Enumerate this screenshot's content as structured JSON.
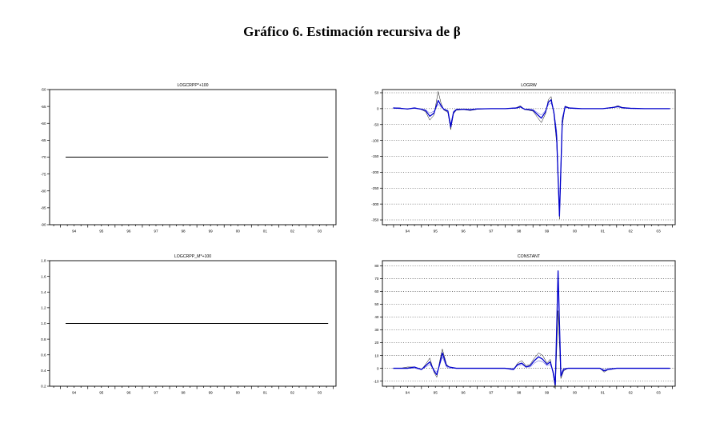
{
  "page_title": "Gráfico 6. Estimación recursiva de β",
  "chart_data": [
    {
      "id": "logcrpp",
      "type": "line",
      "title": "LOGCRPP*+100",
      "grid": false,
      "xlim": [
        1993.6,
        2004.1
      ],
      "ylim": [
        -90,
        -50
      ],
      "ydecimals": 0,
      "yticks": [
        -50,
        -55,
        -60,
        -65,
        -70,
        -75,
        -80,
        -85,
        -90
      ],
      "xticks": [
        {
          "x": 1994.5,
          "label": "94"
        },
        {
          "x": 1995.5,
          "label": "95"
        },
        {
          "x": 1996.5,
          "label": "96"
        },
        {
          "x": 1997.5,
          "label": "97"
        },
        {
          "x": 1998.5,
          "label": "98"
        },
        {
          "x": 1999.5,
          "label": "99"
        },
        {
          "x": 2000.5,
          "label": "00"
        },
        {
          "x": 2001.5,
          "label": "01"
        },
        {
          "x": 2002.5,
          "label": "02"
        },
        {
          "x": 2003.5,
          "label": "03"
        }
      ],
      "series": [
        {
          "name": "recursive-coefficient",
          "color": "#000000",
          "width": 1.1,
          "x": [
            1994.2,
            2003.8
          ],
          "y": [
            -70,
            -70
          ]
        }
      ]
    },
    {
      "id": "logrw",
      "type": "line",
      "title": "LOGRW",
      "grid": true,
      "xlim": [
        1993.6,
        2004.1
      ],
      "ylim": [
        -365,
        60
      ],
      "ydecimals": 0,
      "yticks": [
        50,
        0,
        -50,
        -100,
        -150,
        -200,
        -250,
        -300,
        -350
      ],
      "xticks": [
        {
          "x": 1994.5,
          "label": "94"
        },
        {
          "x": 1995.5,
          "label": "95"
        },
        {
          "x": 1996.5,
          "label": "96"
        },
        {
          "x": 1997.5,
          "label": "97"
        },
        {
          "x": 1998.5,
          "label": "98"
        },
        {
          "x": 1999.5,
          "label": "99"
        },
        {
          "x": 2000.5,
          "label": "00"
        },
        {
          "x": 2001.5,
          "label": "01"
        },
        {
          "x": 2002.5,
          "label": "02"
        },
        {
          "x": 2003.5,
          "label": "03"
        }
      ],
      "series": [
        {
          "name": "band-upper",
          "color": "#111111",
          "width": 0.5,
          "x": [
            1994.0,
            1994.25,
            1994.5,
            1994.75,
            1995.0,
            1995.15,
            1995.3,
            1995.45,
            1995.6,
            1995.7,
            1995.8,
            1995.95,
            1996.05,
            1996.15,
            1996.25,
            1996.5,
            1996.75,
            1997.0,
            1997.5,
            1998.0,
            1998.4,
            1998.55,
            1998.7,
            1998.85,
            1999.0,
            1999.15,
            1999.3,
            1999.45,
            1999.55,
            1999.65,
            1999.75,
            1999.85,
            1999.95,
            2000.05,
            2000.15,
            2000.3,
            2000.5,
            2000.75,
            2001.0,
            2001.5,
            2001.9,
            2002.05,
            2002.2,
            2002.5,
            2003.0,
            2003.9
          ],
          "y": [
            3,
            2,
            -2,
            3,
            -3,
            -10,
            -36,
            -20,
            54,
            18,
            -4,
            -12,
            -66,
            -16,
            -5,
            -3,
            -6,
            -2,
            0,
            0,
            3,
            9,
            -3,
            -5,
            -8,
            -26,
            -44,
            -16,
            28,
            38,
            -18,
            -110,
            -348,
            -55,
            8,
            3,
            1,
            0,
            0,
            0,
            5,
            9,
            4,
            1,
            0,
            0
          ]
        },
        {
          "name": "band-lower",
          "color": "#4444dd",
          "width": 0.5,
          "x": [
            1994.0,
            1994.25,
            1994.5,
            1994.75,
            1995.0,
            1995.15,
            1995.3,
            1995.45,
            1995.6,
            1995.7,
            1995.8,
            1995.95,
            1996.05,
            1996.15,
            1996.25,
            1996.5,
            1996.75,
            1997.0,
            1997.5,
            1998.0,
            1998.4,
            1998.55,
            1998.7,
            1998.85,
            1999.0,
            1999.15,
            1999.3,
            1999.45,
            1999.55,
            1999.65,
            1999.75,
            1999.85,
            1999.95,
            2000.05,
            2000.15,
            2000.3,
            2000.5,
            2000.75,
            2001.0,
            2001.5,
            2001.9,
            2002.05,
            2002.2,
            2002.5,
            2003.0,
            2003.9
          ],
          "y": [
            1,
            0,
            -1,
            1,
            -1,
            -4,
            -14,
            -8,
            14,
            5,
            -1,
            -5,
            -48,
            -8,
            -2,
            -1,
            -2,
            0,
            0,
            0,
            1,
            4,
            -1,
            -2,
            -3,
            -12,
            -20,
            -6,
            12,
            18,
            -8,
            -70,
            -328,
            -28,
            4,
            1,
            0,
            0,
            0,
            0,
            3,
            5,
            2,
            0,
            0,
            0
          ]
        },
        {
          "name": "recursive-coefficient",
          "color": "#0000cc",
          "width": 1.3,
          "x": [
            1994.0,
            1994.25,
            1994.5,
            1994.75,
            1995.0,
            1995.15,
            1995.3,
            1995.45,
            1995.6,
            1995.7,
            1995.8,
            1995.95,
            1996.05,
            1996.15,
            1996.25,
            1996.5,
            1996.75,
            1997.0,
            1997.5,
            1998.0,
            1998.4,
            1998.55,
            1998.7,
            1998.85,
            1999.0,
            1999.15,
            1999.3,
            1999.45,
            1999.55,
            1999.65,
            1999.75,
            1999.85,
            1999.95,
            2000.05,
            2000.15,
            2000.3,
            2000.5,
            2000.75,
            2001.0,
            2001.5,
            2001.9,
            2002.05,
            2002.2,
            2002.5,
            2003.0,
            2003.9
          ],
          "y": [
            2,
            1,
            -1,
            2,
            -2,
            -6,
            -24,
            -14,
            26,
            10,
            -2,
            -8,
            -58,
            -12,
            -3,
            -2,
            -4,
            -1,
            0,
            0,
            2,
            6,
            -2,
            -3,
            -5,
            -18,
            -30,
            -10,
            20,
            28,
            -12,
            -90,
            -338,
            -40,
            6,
            2,
            1,
            0,
            0,
            0,
            4,
            7,
            3,
            1,
            0,
            0
          ]
        }
      ]
    },
    {
      "id": "logcrpp-m",
      "type": "line",
      "title": "LOGCRPP_M*+100",
      "grid": false,
      "xlim": [
        1993.6,
        2004.1
      ],
      "ylim": [
        0.2,
        1.8
      ],
      "ydecimals": 1,
      "yticks": [
        1.8,
        1.6,
        1.4,
        1.2,
        1.0,
        0.8,
        0.6,
        0.4,
        0.2
      ],
      "xticks": [
        {
          "x": 1994.5,
          "label": "94"
        },
        {
          "x": 1995.5,
          "label": "95"
        },
        {
          "x": 1996.5,
          "label": "96"
        },
        {
          "x": 1997.5,
          "label": "97"
        },
        {
          "x": 1998.5,
          "label": "98"
        },
        {
          "x": 1999.5,
          "label": "99"
        },
        {
          "x": 2000.5,
          "label": "00"
        },
        {
          "x": 2001.5,
          "label": "01"
        },
        {
          "x": 2002.5,
          "label": "02"
        },
        {
          "x": 2003.5,
          "label": "03"
        }
      ],
      "series": [
        {
          "name": "recursive-coefficient",
          "color": "#000000",
          "width": 1.1,
          "x": [
            1994.2,
            2003.8
          ],
          "y": [
            1.0,
            1.0
          ]
        }
      ]
    },
    {
      "id": "constant",
      "type": "line",
      "title": "CONSTANT",
      "grid": true,
      "xlim": [
        1993.6,
        2004.1
      ],
      "ylim": [
        -14,
        84
      ],
      "ydecimals": 0,
      "yticks": [
        80,
        70,
        60,
        50,
        40,
        30,
        20,
        10,
        0,
        -10
      ],
      "xticks": [
        {
          "x": 1994.5,
          "label": "94"
        },
        {
          "x": 1995.5,
          "label": "95"
        },
        {
          "x": 1996.5,
          "label": "96"
        },
        {
          "x": 1997.5,
          "label": "97"
        },
        {
          "x": 1998.5,
          "label": "98"
        },
        {
          "x": 1999.5,
          "label": "99"
        },
        {
          "x": 2000.5,
          "label": "00"
        },
        {
          "x": 2001.5,
          "label": "01"
        },
        {
          "x": 2002.5,
          "label": "02"
        },
        {
          "x": 2003.5,
          "label": "03"
        }
      ],
      "series": [
        {
          "name": "band-upper",
          "color": "#111111",
          "width": 0.5,
          "x": [
            1994.0,
            1994.25,
            1994.5,
            1994.75,
            1995.0,
            1995.15,
            1995.3,
            1995.45,
            1995.55,
            1995.65,
            1995.75,
            1995.9,
            1996.0,
            1996.25,
            1996.5,
            1997.0,
            1997.5,
            1998.0,
            1998.3,
            1998.45,
            1998.6,
            1998.75,
            1998.9,
            1999.05,
            1999.2,
            1999.35,
            1999.5,
            1999.62,
            1999.72,
            1999.8,
            1999.9,
            2000.0,
            2000.1,
            2000.25,
            2000.5,
            2001.0,
            2001.4,
            2001.55,
            2001.7,
            2002.0,
            2002.5,
            2003.0,
            2003.9
          ],
          "y": [
            0,
            0,
            1,
            1,
            -1,
            3,
            8,
            -3,
            -7,
            5,
            15,
            3,
            1,
            0,
            0,
            0,
            0,
            0,
            -1,
            4,
            6,
            2,
            3,
            8,
            12,
            10,
            4,
            7,
            -4,
            -16,
            45,
            -8,
            -2,
            0,
            0,
            0,
            0,
            -3,
            -1,
            0,
            0,
            0,
            0
          ]
        },
        {
          "name": "band-lower",
          "color": "#4444dd",
          "width": 0.5,
          "x": [
            1994.0,
            1994.25,
            1994.5,
            1994.75,
            1995.0,
            1995.15,
            1995.3,
            1995.45,
            1995.55,
            1995.65,
            1995.75,
            1995.9,
            1996.0,
            1996.25,
            1996.5,
            1997.0,
            1997.5,
            1998.0,
            1998.3,
            1998.45,
            1998.6,
            1998.75,
            1998.9,
            1999.05,
            1999.2,
            1999.35,
            1999.5,
            1999.62,
            1999.72,
            1999.8,
            1999.9,
            2000.0,
            2000.1,
            2000.25,
            2000.5,
            2001.0,
            2001.4,
            2001.55,
            2001.7,
            2002.0,
            2002.5,
            2003.0,
            2003.9
          ],
          "y": [
            0,
            0,
            0,
            0,
            -1,
            1,
            3,
            -1,
            -3,
            2,
            9,
            1,
            0,
            0,
            0,
            0,
            0,
            0,
            0,
            2,
            3,
            1,
            1,
            4,
            6,
            5,
            2,
            3,
            -2,
            -9,
            70,
            -4,
            0,
            0,
            0,
            0,
            0,
            -1,
            0,
            0,
            0,
            0,
            0
          ]
        },
        {
          "name": "recursive-coefficient",
          "color": "#0000cc",
          "width": 1.3,
          "x": [
            1994.0,
            1994.25,
            1994.5,
            1994.75,
            1995.0,
            1995.15,
            1995.3,
            1995.45,
            1995.55,
            1995.65,
            1995.75,
            1995.9,
            1996.0,
            1996.25,
            1996.5,
            1997.0,
            1997.5,
            1998.0,
            1998.3,
            1998.45,
            1998.6,
            1998.75,
            1998.9,
            1999.05,
            1999.2,
            1999.35,
            1999.5,
            1999.62,
            1999.72,
            1999.8,
            1999.9,
            2000.0,
            2000.1,
            2000.25,
            2000.5,
            2001.0,
            2001.4,
            2001.55,
            2001.7,
            2002.0,
            2002.5,
            2003.0,
            2003.9
          ],
          "y": [
            0,
            0,
            0,
            1,
            -1,
            2,
            5,
            -2,
            -5,
            3,
            12,
            2,
            1,
            0,
            0,
            0,
            0,
            0,
            -1,
            3,
            4,
            1,
            2,
            6,
            9,
            7,
            3,
            5,
            -3,
            -13,
            76,
            -6,
            -1,
            0,
            0,
            0,
            0,
            -2,
            -1,
            0,
            0,
            0,
            0
          ]
        }
      ]
    }
  ]
}
